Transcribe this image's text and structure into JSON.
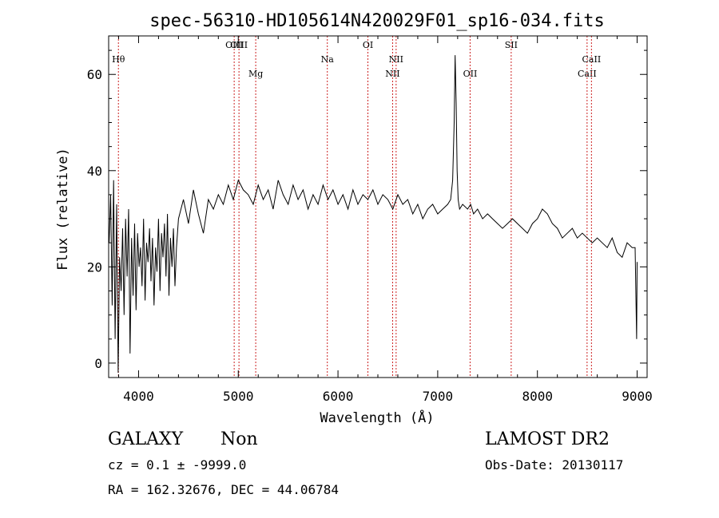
{
  "chart_data": {
    "type": "line",
    "title": "spec-56310-HD105614N420029F01_sp16-034.fits",
    "xlabel": "Wavelength (Å)",
    "ylabel": "Flux (relative)",
    "xlim": [
      3700,
      9100
    ],
    "ylim": [
      -3,
      68
    ],
    "xticks": [
      4000,
      5000,
      6000,
      7000,
      8000,
      9000
    ],
    "yticks": [
      0,
      20,
      40,
      60
    ],
    "grid": false,
    "line_color": "#000000",
    "marker_color": "#cc2222",
    "lines": [
      {
        "label": "Hθ",
        "x": 3798,
        "row": 1
      },
      {
        "label": "OIII",
        "x": 4959,
        "row": 0
      },
      {
        "label": "OIII",
        "x": 5007,
        "row": 0
      },
      {
        "label": "Mg",
        "x": 5175,
        "row": 2
      },
      {
        "label": "Na",
        "x": 5893,
        "row": 1
      },
      {
        "label": "OI",
        "x": 6300,
        "row": 0
      },
      {
        "label": "NII",
        "x": 6548,
        "row": 2
      },
      {
        "label": "NII",
        "x": 6583,
        "row": 1
      },
      {
        "label": "OII",
        "x": 7325,
        "row": 2
      },
      {
        "label": "SII",
        "x": 7737,
        "row": 0
      },
      {
        "label": "CaII",
        "x": 8498,
        "row": 2
      },
      {
        "label": "CaII",
        "x": 8542,
        "row": 1
      }
    ],
    "series": [
      {
        "x": [
          3705,
          3720,
          3735,
          3750,
          3765,
          3780,
          3795,
          3810,
          3825,
          3840,
          3855,
          3870,
          3885,
          3900,
          3915,
          3930,
          3945,
          3960,
          3975,
          3990,
          4005,
          4020,
          4035,
          4050,
          4065,
          4080,
          4095,
          4110,
          4125,
          4140,
          4155,
          4170,
          4185,
          4200,
          4215,
          4230,
          4245,
          4260,
          4275,
          4290,
          4305,
          4320,
          4335,
          4350,
          4365,
          4380,
          4400,
          4450,
          4500,
          4550,
          4600,
          4650,
          4700,
          4750,
          4800,
          4850,
          4900,
          4950,
          5000,
          5050,
          5100,
          5150,
          5200,
          5250,
          5300,
          5350,
          5400,
          5450,
          5500,
          5550,
          5600,
          5650,
          5700,
          5750,
          5800,
          5850,
          5900,
          5950,
          6000,
          6050,
          6100,
          6150,
          6200,
          6250,
          6300,
          6350,
          6400,
          6450,
          6500,
          6550,
          6600,
          6650,
          6700,
          6750,
          6800,
          6850,
          6900,
          6950,
          7000,
          7050,
          7100,
          7130,
          7150,
          7165,
          7175,
          7185,
          7195,
          7205,
          7220,
          7250,
          7300,
          7330,
          7360,
          7400,
          7450,
          7500,
          7550,
          7600,
          7650,
          7700,
          7750,
          7800,
          7850,
          7900,
          7950,
          8000,
          8050,
          8100,
          8150,
          8200,
          8250,
          8300,
          8350,
          8400,
          8450,
          8500,
          8550,
          8600,
          8650,
          8700,
          8750,
          8800,
          8850,
          8900,
          8950,
          8980,
          8995,
          9000
        ],
        "y": [
          25,
          35,
          12,
          38,
          5,
          33,
          -2,
          22,
          15,
          28,
          10,
          30,
          18,
          32,
          2,
          26,
          14,
          29,
          11,
          27,
          20,
          24,
          16,
          30,
          13,
          25,
          21,
          28,
          17,
          26,
          12,
          24,
          19,
          30,
          15,
          27,
          22,
          29,
          18,
          31,
          14,
          26,
          20,
          28,
          16,
          24,
          30,
          34,
          29,
          36,
          31,
          27,
          34,
          32,
          35,
          33,
          37,
          34,
          38,
          36,
          35,
          33,
          37,
          34,
          36,
          32,
          38,
          35,
          33,
          37,
          34,
          36,
          32,
          35,
          33,
          37,
          34,
          36,
          33,
          35,
          32,
          36,
          33,
          35,
          34,
          36,
          33,
          35,
          34,
          32,
          35,
          33,
          34,
          31,
          33,
          30,
          32,
          33,
          31,
          32,
          33,
          34,
          38,
          50,
          64,
          54,
          40,
          34,
          32,
          33,
          32,
          33,
          31,
          32,
          30,
          31,
          30,
          29,
          28,
          29,
          30,
          29,
          28,
          27,
          29,
          30,
          32,
          31,
          29,
          28,
          26,
          27,
          28,
          26,
          27,
          26,
          25,
          26,
          25,
          24,
          26,
          23,
          22,
          25,
          24,
          24,
          5,
          21
        ]
      }
    ]
  },
  "info": {
    "class": "GALAXY",
    "subclass": "Non",
    "redshift": "cz = 0.1 ± -9999.0",
    "coords": "RA = 162.32676, DEC =  44.06784",
    "survey": "LAMOST DR2",
    "obs_date": "Obs-Date: 20130117"
  }
}
